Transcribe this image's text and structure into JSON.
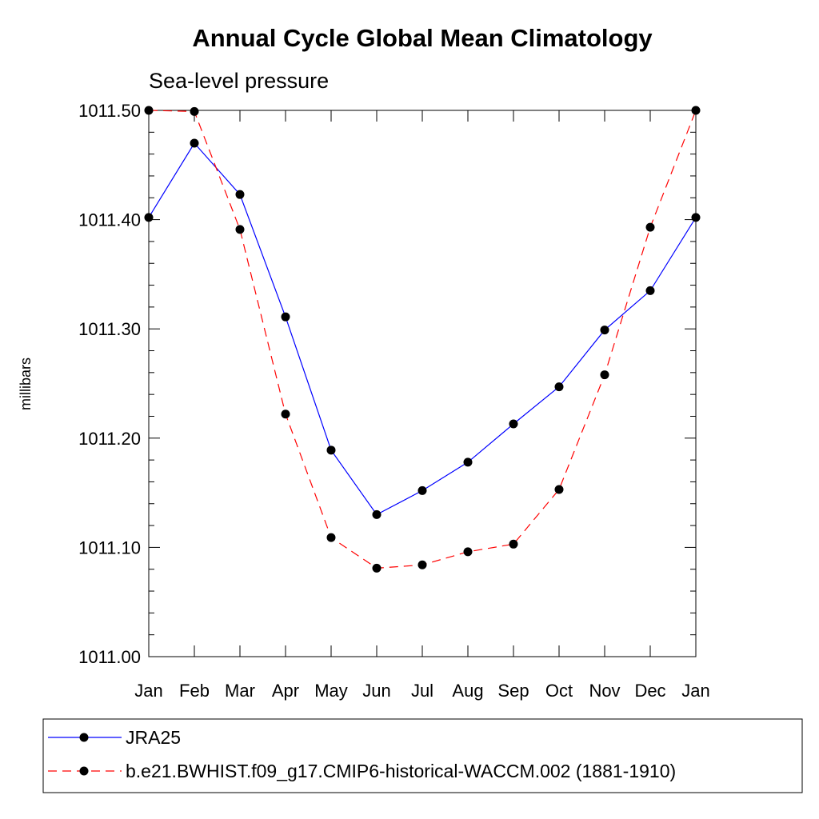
{
  "chart_data": {
    "type": "line",
    "title": "Annual Cycle Global Mean Climatology",
    "subtitle": "Sea-level pressure",
    "xlabel": "",
    "ylabel": "millibars",
    "categories": [
      "Jan",
      "Feb",
      "Mar",
      "Apr",
      "May",
      "Jun",
      "Jul",
      "Aug",
      "Sep",
      "Oct",
      "Nov",
      "Dec",
      "Jan"
    ],
    "ylim": [
      1011.0,
      1011.5
    ],
    "yticks": [
      1011.0,
      1011.1,
      1011.2,
      1011.3,
      1011.4,
      1011.5
    ],
    "ytick_labels": [
      "1011.00",
      "1011.10",
      "1011.20",
      "1011.30",
      "1011.40",
      "1011.50"
    ],
    "y_minor_step": 0.02,
    "grid": false,
    "legend_position": "bottom",
    "series": [
      {
        "name": "JRA25",
        "color": "#0000ff",
        "style": "solid",
        "values": [
          1011.402,
          1011.47,
          1011.423,
          1011.311,
          1011.189,
          1011.13,
          1011.152,
          1011.178,
          1011.213,
          1011.247,
          1011.299,
          1011.335,
          1011.402
        ]
      },
      {
        "name": "b.e21.BWHIST.f09_g17.CMIP6-historical-WACCM.002 (1881-1910)",
        "color": "#ff0000",
        "style": "dashed",
        "values": [
          1011.5,
          1011.499,
          1011.391,
          1011.222,
          1011.109,
          1011.081,
          1011.084,
          1011.096,
          1011.103,
          1011.153,
          1011.258,
          1011.393,
          1011.5
        ]
      }
    ]
  }
}
